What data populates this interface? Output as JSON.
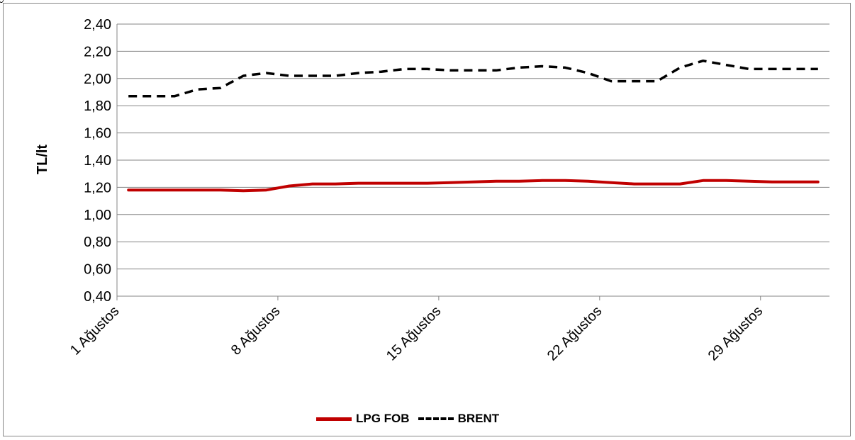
{
  "header_fragment": "y",
  "chart_data": {
    "type": "line",
    "ylabel": "TL/lt",
    "xlabel": "",
    "ylim": [
      0.4,
      2.4
    ],
    "yticks": [
      "0,40",
      "0,60",
      "0,80",
      "1,00",
      "1,20",
      "1,40",
      "1,60",
      "1,80",
      "2,00",
      "2,20",
      "2,40"
    ],
    "xtick_labels": [
      "1 Ağustos",
      "8 Ağustos",
      "15 Ağustos",
      "22 Ağustos",
      "29 Ağustos"
    ],
    "x": [
      1,
      2,
      3,
      4,
      5,
      6,
      7,
      8,
      9,
      10,
      11,
      12,
      13,
      14,
      15,
      16,
      17,
      18,
      19,
      20,
      21,
      22,
      23,
      24,
      25,
      26,
      27,
      28,
      29,
      30,
      31
    ],
    "grid": true,
    "legend_position": "bottom",
    "series": [
      {
        "name": "LPG FOB",
        "color": "#c00000",
        "style": "solid",
        "values": [
          1.18,
          1.18,
          1.18,
          1.18,
          1.18,
          1.175,
          1.18,
          1.21,
          1.225,
          1.225,
          1.23,
          1.23,
          1.23,
          1.23,
          1.235,
          1.24,
          1.245,
          1.245,
          1.25,
          1.25,
          1.245,
          1.235,
          1.225,
          1.225,
          1.225,
          1.25,
          1.25,
          1.245,
          1.24,
          1.24,
          1.24
        ]
      },
      {
        "name": "BRENT",
        "color": "#000000",
        "style": "dashed",
        "values": [
          1.87,
          1.87,
          1.87,
          1.92,
          1.93,
          2.02,
          2.04,
          2.02,
          2.02,
          2.02,
          2.04,
          2.05,
          2.07,
          2.07,
          2.06,
          2.06,
          2.06,
          2.08,
          2.09,
          2.08,
          2.04,
          1.98,
          1.98,
          1.98,
          2.08,
          2.13,
          2.1,
          2.07,
          2.07,
          2.07,
          2.07
        ]
      }
    ]
  }
}
